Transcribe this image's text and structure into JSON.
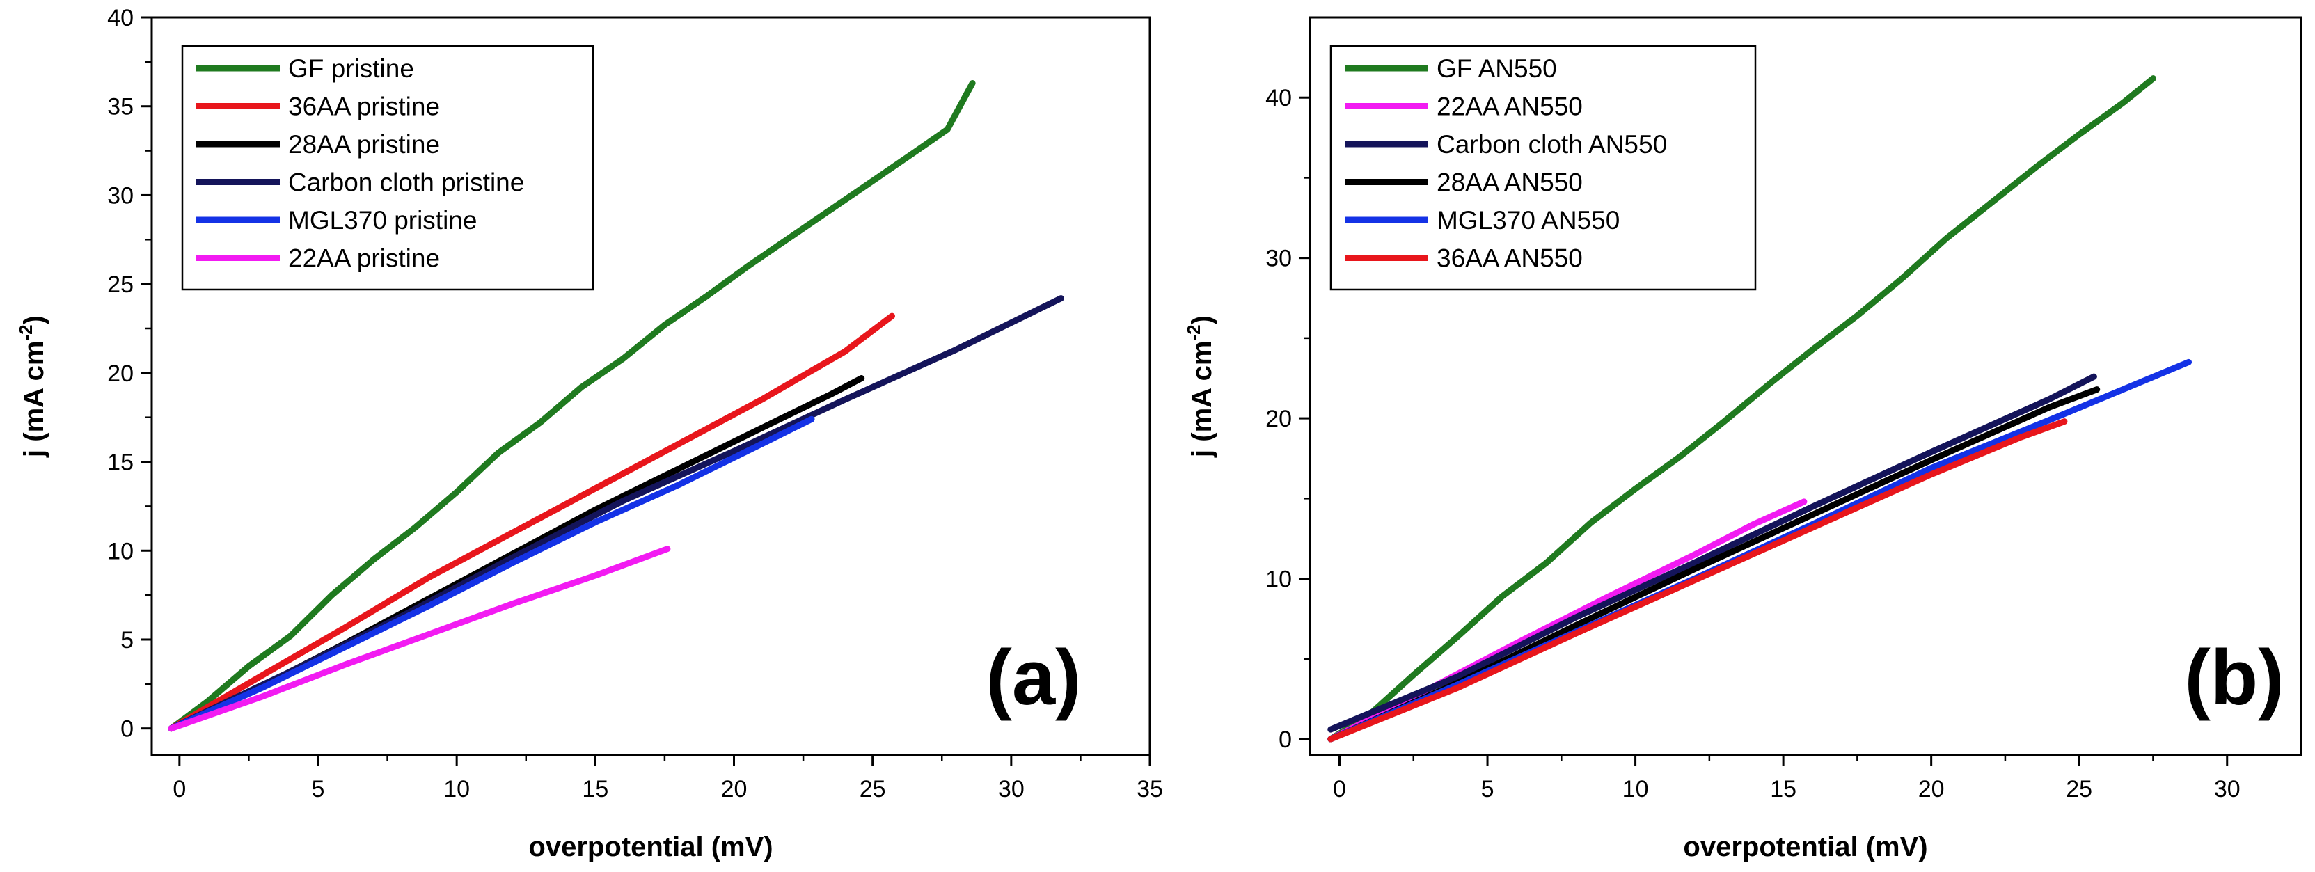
{
  "chart_data": [
    {
      "type": "line",
      "panel_label": "(a)",
      "xlabel": "overpotential (mV)",
      "ylabel_main": "j (mA cm",
      "ylabel_sup": "-2",
      "ylabel_end": ")",
      "xlim": [
        -1,
        35
      ],
      "ylim": [
        -1.5,
        40
      ],
      "xticks": [
        0,
        5,
        10,
        15,
        20,
        25,
        30,
        35
      ],
      "yticks": [
        0,
        5,
        10,
        15,
        20,
        25,
        30,
        35,
        40
      ],
      "grid": false,
      "legend_position": "top-left",
      "series": [
        {
          "name": "GF pristine",
          "color": "#1f7a1f",
          "points": [
            [
              -0.3,
              0
            ],
            [
              1,
              1.5
            ],
            [
              2.5,
              3.5
            ],
            [
              4,
              5.2
            ],
            [
              5.5,
              7.5
            ],
            [
              7,
              9.5
            ],
            [
              8.5,
              11.3
            ],
            [
              10,
              13.3
            ],
            [
              11.5,
              15.5
            ],
            [
              13,
              17.2
            ],
            [
              14.5,
              19.2
            ],
            [
              16,
              20.8
            ],
            [
              17.5,
              22.7
            ],
            [
              19,
              24.3
            ],
            [
              20.5,
              26
            ],
            [
              22,
              27.6
            ],
            [
              23.5,
              29.2
            ],
            [
              25,
              30.8
            ],
            [
              26.5,
              32.4
            ],
            [
              27.7,
              33.7
            ],
            [
              28.6,
              36.3
            ]
          ]
        },
        {
          "name": "36AA pristine",
          "color": "#e8161c",
          "points": [
            [
              -0.3,
              0
            ],
            [
              3,
              3
            ],
            [
              6,
              5.7
            ],
            [
              9,
              8.5
            ],
            [
              12,
              11
            ],
            [
              15,
              13.5
            ],
            [
              18,
              16
            ],
            [
              21,
              18.5
            ],
            [
              24,
              21.2
            ],
            [
              25.7,
              23.2
            ]
          ]
        },
        {
          "name": "28AA pristine",
          "color": "#000000",
          "points": [
            [
              -0.3,
              0
            ],
            [
              3,
              2.4
            ],
            [
              6,
              4.8
            ],
            [
              9,
              7.3
            ],
            [
              12,
              9.8
            ],
            [
              15,
              12.3
            ],
            [
              18,
              14.6
            ],
            [
              21,
              16.9
            ],
            [
              23.5,
              18.8
            ],
            [
              24.6,
              19.7
            ]
          ]
        },
        {
          "name": "Carbon cloth pristine",
          "color": "#14145a",
          "points": [
            [
              -0.3,
              0
            ],
            [
              4,
              3.2
            ],
            [
              8,
              6.3
            ],
            [
              12,
              9.6
            ],
            [
              16,
              12.8
            ],
            [
              20,
              15.6
            ],
            [
              24,
              18.5
            ],
            [
              28,
              21.3
            ],
            [
              31.8,
              24.2
            ]
          ]
        },
        {
          "name": "MGL370 pristine",
          "color": "#1432e6",
          "points": [
            [
              -0.3,
              0
            ],
            [
              3,
              2.3
            ],
            [
              6,
              4.6
            ],
            [
              9,
              6.9
            ],
            [
              12,
              9.3
            ],
            [
              15,
              11.6
            ],
            [
              18,
              13.7
            ],
            [
              21,
              16
            ],
            [
              22.8,
              17.4
            ]
          ]
        },
        {
          "name": "22AA pristine",
          "color": "#f21bf2",
          "points": [
            [
              -0.3,
              0
            ],
            [
              3,
              1.8
            ],
            [
              6,
              3.6
            ],
            [
              9,
              5.3
            ],
            [
              12,
              7
            ],
            [
              15,
              8.6
            ],
            [
              17.6,
              10.1
            ]
          ]
        }
      ]
    },
    {
      "type": "line",
      "panel_label": "(b)",
      "xlabel": "overpotential (mV)",
      "ylabel_main": "j (mA cm",
      "ylabel_sup": "-2",
      "ylabel_end": ")",
      "xlim": [
        -1,
        32.5
      ],
      "ylim": [
        -1,
        45
      ],
      "xticks": [
        0,
        5,
        10,
        15,
        20,
        25,
        30
      ],
      "yticks": [
        0,
        10,
        20,
        30,
        40
      ],
      "grid": false,
      "legend_position": "top-left",
      "series": [
        {
          "name": "GF AN550",
          "color": "#1f7a1f",
          "points": [
            [
              -0.3,
              0
            ],
            [
              1,
              1.5
            ],
            [
              2.5,
              4
            ],
            [
              4,
              6.4
            ],
            [
              5.5,
              8.9
            ],
            [
              7,
              11
            ],
            [
              8.5,
              13.5
            ],
            [
              10,
              15.6
            ],
            [
              11.5,
              17.6
            ],
            [
              13,
              19.8
            ],
            [
              14.5,
              22.1
            ],
            [
              16,
              24.3
            ],
            [
              17.5,
              26.4
            ],
            [
              19,
              28.7
            ],
            [
              20.5,
              31.2
            ],
            [
              22,
              33.4
            ],
            [
              23.5,
              35.6
            ],
            [
              25,
              37.7
            ],
            [
              26.5,
              39.7
            ],
            [
              27.5,
              41.2
            ]
          ]
        },
        {
          "name": "22AA AN550",
          "color": "#f21bf2",
          "points": [
            [
              -0.3,
              0
            ],
            [
              3,
              3.1
            ],
            [
              6,
              6
            ],
            [
              9,
              8.8
            ],
            [
              12,
              11.5
            ],
            [
              14,
              13.4
            ],
            [
              15.7,
              14.8
            ]
          ]
        },
        {
          "name": "Carbon cloth AN550",
          "color": "#14145a",
          "points": [
            [
              -0.3,
              0.6
            ],
            [
              4,
              3.9
            ],
            [
              8,
              7.6
            ],
            [
              12,
              11
            ],
            [
              16,
              14.5
            ],
            [
              20,
              17.9
            ],
            [
              24,
              21.2
            ],
            [
              25.5,
              22.6
            ]
          ]
        },
        {
          "name": "28AA AN550",
          "color": "#000000",
          "points": [
            [
              -0.3,
              0
            ],
            [
              4,
              3.5
            ],
            [
              8,
              7.1
            ],
            [
              12,
              10.6
            ],
            [
              16,
              14
            ],
            [
              20,
              17.4
            ],
            [
              24,
              20.7
            ],
            [
              25.6,
              21.8
            ]
          ]
        },
        {
          "name": "MGL370 AN550",
          "color": "#1432e6",
          "points": [
            [
              -0.3,
              0
            ],
            [
              4,
              3.4
            ],
            [
              8,
              6.7
            ],
            [
              12,
              10
            ],
            [
              16,
              13.4
            ],
            [
              20,
              16.9
            ],
            [
              24,
              19.9
            ],
            [
              28.7,
              23.5
            ]
          ]
        },
        {
          "name": "36AA AN550",
          "color": "#e8161c",
          "points": [
            [
              -0.3,
              0
            ],
            [
              4,
              3.2
            ],
            [
              8,
              6.6
            ],
            [
              12,
              9.9
            ],
            [
              16,
              13.2
            ],
            [
              20,
              16.5
            ],
            [
              23,
              18.8
            ],
            [
              24.5,
              19.8
            ]
          ]
        }
      ]
    }
  ]
}
